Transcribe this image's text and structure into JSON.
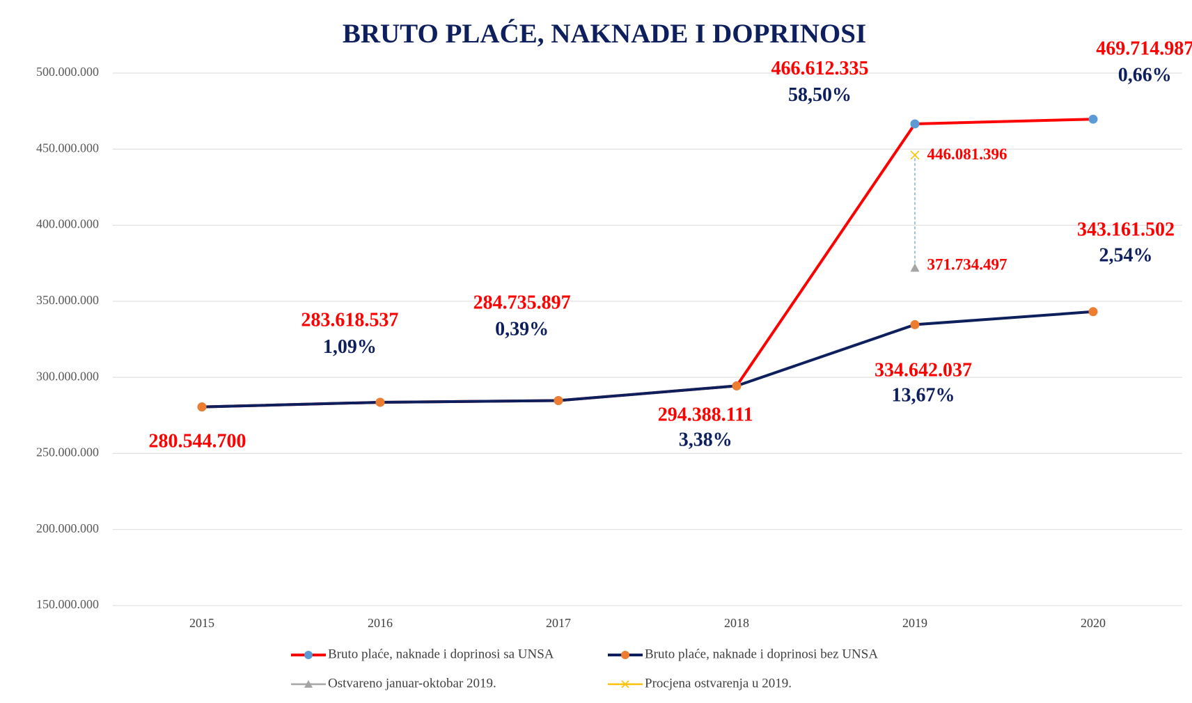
{
  "chart_data": {
    "type": "line",
    "title": "BRUTO PLAĆE, NAKNADE I DOPRINOSI",
    "categories": [
      "2015",
      "2016",
      "2017",
      "2018",
      "2019",
      "2020"
    ],
    "ylim": [
      150000000,
      500000000
    ],
    "yticks": [
      {
        "value": 150000000,
        "label": "150.000.000"
      },
      {
        "value": 200000000,
        "label": "200.000.000"
      },
      {
        "value": 250000000,
        "label": "250.000.000"
      },
      {
        "value": 300000000,
        "label": "300.000.000"
      },
      {
        "value": 350000000,
        "label": "350.000.000"
      },
      {
        "value": 400000000,
        "label": "400.000.000"
      },
      {
        "value": 450000000,
        "label": "450.000.000"
      },
      {
        "value": 500000000,
        "label": "500.000.000"
      }
    ],
    "grid": true,
    "legend": "bottom",
    "series": [
      {
        "name": "Bruto plaće, naknade i doprinosi sa UNSA",
        "color": "#ff0000",
        "marker_color": "#5b9bd5",
        "marker": "circle",
        "values": [
          280544700,
          283618537,
          284735897,
          294388111,
          466612335,
          469714987
        ],
        "value_labels": [
          null,
          null,
          null,
          null,
          "466.612.335",
          "469.714.987"
        ],
        "growth": [
          null,
          null,
          null,
          null,
          58.5,
          0.66
        ],
        "growth_labels": [
          null,
          null,
          null,
          null,
          "58,50%",
          "0,66%"
        ]
      },
      {
        "name": "Bruto plaće, naknade i doprinosi bez UNSA",
        "color": "#0d1f5c",
        "marker_color": "#ed7d31",
        "marker": "circle",
        "values": [
          280544700,
          283618537,
          284735897,
          294388111,
          334642037,
          343161502
        ],
        "value_labels": [
          "280.544.700",
          "283.618.537",
          "284.735.897",
          "294.388.111",
          "334.642.037",
          "343.161.502"
        ],
        "growth": [
          null,
          1.09,
          0.39,
          3.38,
          13.67,
          2.54
        ],
        "growth_labels": [
          null,
          "1,09%",
          "0,39%",
          "3,38%",
          "13,67%",
          "2,54%"
        ]
      },
      {
        "name": "Ostvareno januar-oktobar 2019.",
        "color": "#a5a5a5",
        "marker_color": "#a5a5a5",
        "marker": "triangle",
        "values": [
          null,
          null,
          null,
          null,
          371734497,
          null
        ],
        "value_labels": [
          null,
          null,
          null,
          null,
          "371.734.497",
          null
        ]
      },
      {
        "name": "Procjena ostvarenja u 2019.",
        "color": "#ffc000",
        "marker_color": "#ffc000",
        "marker": "x",
        "values": [
          null,
          null,
          null,
          null,
          446081396,
          null
        ],
        "value_labels": [
          null,
          null,
          null,
          null,
          "446.081.396",
          null
        ]
      }
    ]
  }
}
